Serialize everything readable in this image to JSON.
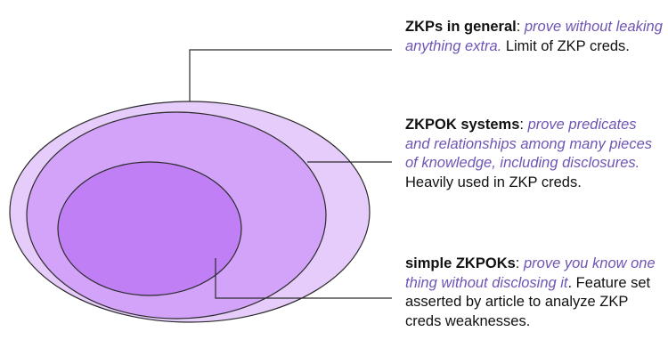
{
  "colors": {
    "outer_fill": "#e6ccfb",
    "middle_fill": "#d2a3f8",
    "inner_fill": "#c07ff5",
    "outline": "#2b2b2b",
    "accent_text": "#6f55b4",
    "body_text": "#111111"
  },
  "regions": [
    {
      "name": "ZKPs in general"
    },
    {
      "name": "ZKPOK systems"
    },
    {
      "name": "simple ZKPOKs"
    }
  ],
  "callouts": [
    {
      "term": "ZKPs in general",
      "sep": ": ",
      "desc": "prove without leaking anything extra.",
      "note": " Limit of ZKP creds."
    },
    {
      "term": "ZKPOK systems",
      "sep": ": ",
      "desc": "prove predicates and relationships among many pieces of knowledge, including disclosures.",
      "note": " Heavily used in ZKP creds."
    },
    {
      "term": "simple ZKPOKs",
      "sep": ": ",
      "desc": "prove you know one thing without disclosing it",
      "note": ". Feature set asserted by article to analyze ZKP creds weaknesses."
    }
  ]
}
